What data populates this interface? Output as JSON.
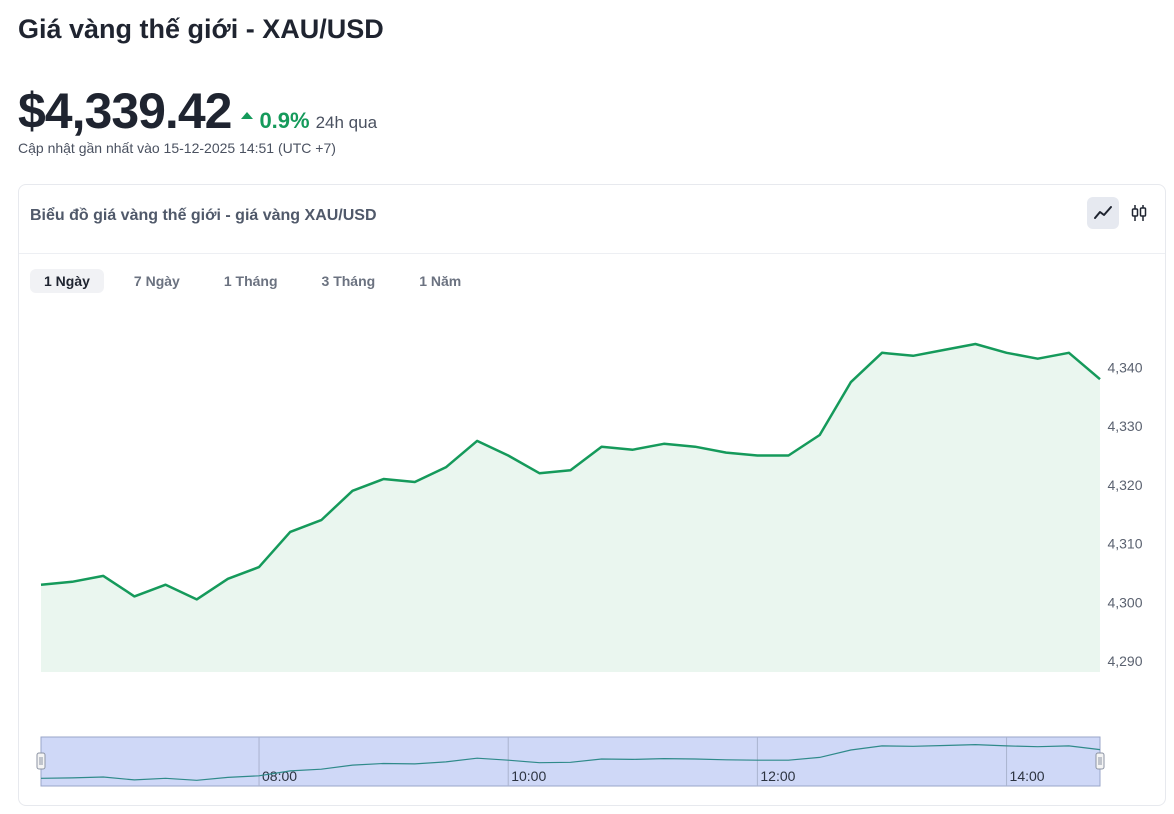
{
  "page": {
    "title": "Giá vàng thế giới - XAU/USD",
    "price": "$4,339.42",
    "change": "0.9%",
    "change_period": "24h qua",
    "updated": "Cập nhật gần nhất vào 15-12-2025 14:51 (UTC +7)"
  },
  "card": {
    "title": "Biểu đồ giá vàng thế giới - giá vàng XAU/USD",
    "tabs": [
      "1 Ngày",
      "7 Ngày",
      "1 Tháng",
      "3 Tháng",
      "1 Năm"
    ],
    "active_tab": 0,
    "chart_types": [
      "line-chart-icon",
      "candlestick-icon"
    ],
    "active_chart_type": 0
  },
  "colors": {
    "line": "#159a5b",
    "area": "#eaf6ef",
    "navigator_bg": "#cfd8f7",
    "navigator_line": "#2f8a8a",
    "accent_up": "#159a5b"
  },
  "chart_data": {
    "type": "area",
    "title": "",
    "xlabel": "",
    "ylabel": "",
    "ylim": [
      4290,
      4350
    ],
    "y_ticks": [
      "4,290",
      "4,300",
      "4,310",
      "4,320",
      "4,330",
      "4,340"
    ],
    "x_time_range": [
      "06:15",
      "14:45"
    ],
    "series": [
      {
        "x": [
          "06:15",
          "06:30",
          "06:45",
          "07:00",
          "07:15",
          "07:30",
          "07:45",
          "08:00",
          "08:15",
          "08:30",
          "08:45",
          "09:00",
          "09:15",
          "09:30",
          "09:45",
          "10:00",
          "10:15",
          "10:30",
          "10:45",
          "11:00",
          "11:15",
          "11:30",
          "11:45",
          "12:00",
          "12:15",
          "12:30",
          "12:45",
          "13:00",
          "13:15",
          "13:30",
          "13:45",
          "14:00",
          "14:15",
          "14:30",
          "14:45"
        ],
        "values": [
          4303,
          4303.5,
          4304.5,
          4301,
          4303,
          4300.5,
          4304,
          4306,
          4312,
          4314,
          4319,
          4321,
          4320.5,
          4323,
          4327.5,
          4325,
          4322,
          4322.5,
          4326.5,
          4326,
          4327,
          4326.5,
          4325.5,
          4325,
          4325,
          4328.5,
          4337.5,
          4342.5,
          4342,
          4343,
          4344,
          4342.5,
          4341.5,
          4342.5,
          4338
        ]
      }
    ],
    "navigator": {
      "x_labels": [
        "08:00",
        "10:00",
        "12:00",
        "14:00"
      ]
    }
  }
}
